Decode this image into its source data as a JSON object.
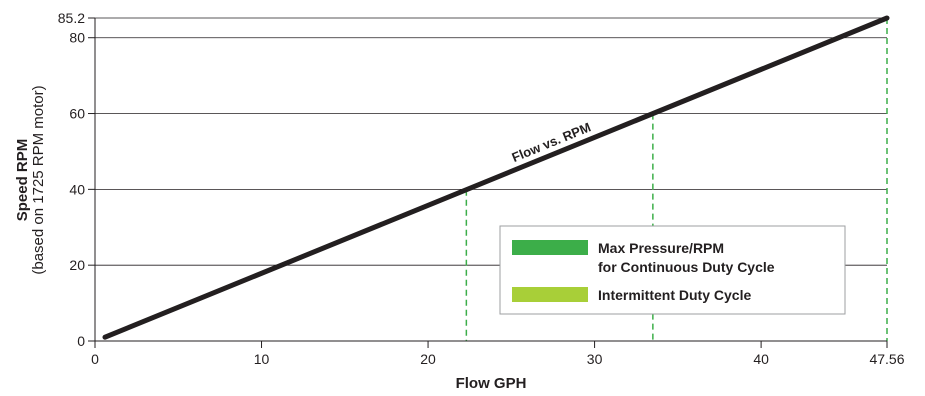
{
  "chart_data": {
    "type": "line",
    "xlabel": "Flow GPH",
    "ylabel": "Speed RPM",
    "ylabel_sub": "(based on 1725 RPM motor)",
    "xlim": [
      0,
      47.56
    ],
    "ylim": [
      0,
      85.2
    ],
    "x_ticks": [
      {
        "value": 0,
        "label": "0"
      },
      {
        "value": 10,
        "label": "10"
      },
      {
        "value": 20,
        "label": "20"
      },
      {
        "value": 30,
        "label": "30"
      },
      {
        "value": 40,
        "label": "40"
      },
      {
        "value": 47.56,
        "label": "47.56"
      }
    ],
    "y_ticks": [
      {
        "value": 0,
        "label": "0"
      },
      {
        "value": 20,
        "label": "20"
      },
      {
        "value": 40,
        "label": "40"
      },
      {
        "value": 60,
        "label": "60"
      },
      {
        "value": 80,
        "label": "80"
      },
      {
        "value": 85.2,
        "label": "85.2"
      }
    ],
    "grid": "horizontal",
    "series": [
      {
        "label": "Flow vs. RPM",
        "color": "#231f20",
        "x": [
          0.6,
          47.56
        ],
        "y": [
          1,
          85.2
        ]
      }
    ],
    "dropdowns": {
      "color": "#3cae49",
      "x": [
        22.3,
        33.5,
        47.56
      ]
    },
    "legend": {
      "position": "bottom-right",
      "items": [
        {
          "label": "Max Pressure/RPM",
          "label2": "for Continuous Duty Cycle",
          "color": "#3cae49"
        },
        {
          "label": "Intermittent Duty Cycle",
          "label2": "",
          "color": "#a8cf38"
        }
      ]
    }
  }
}
